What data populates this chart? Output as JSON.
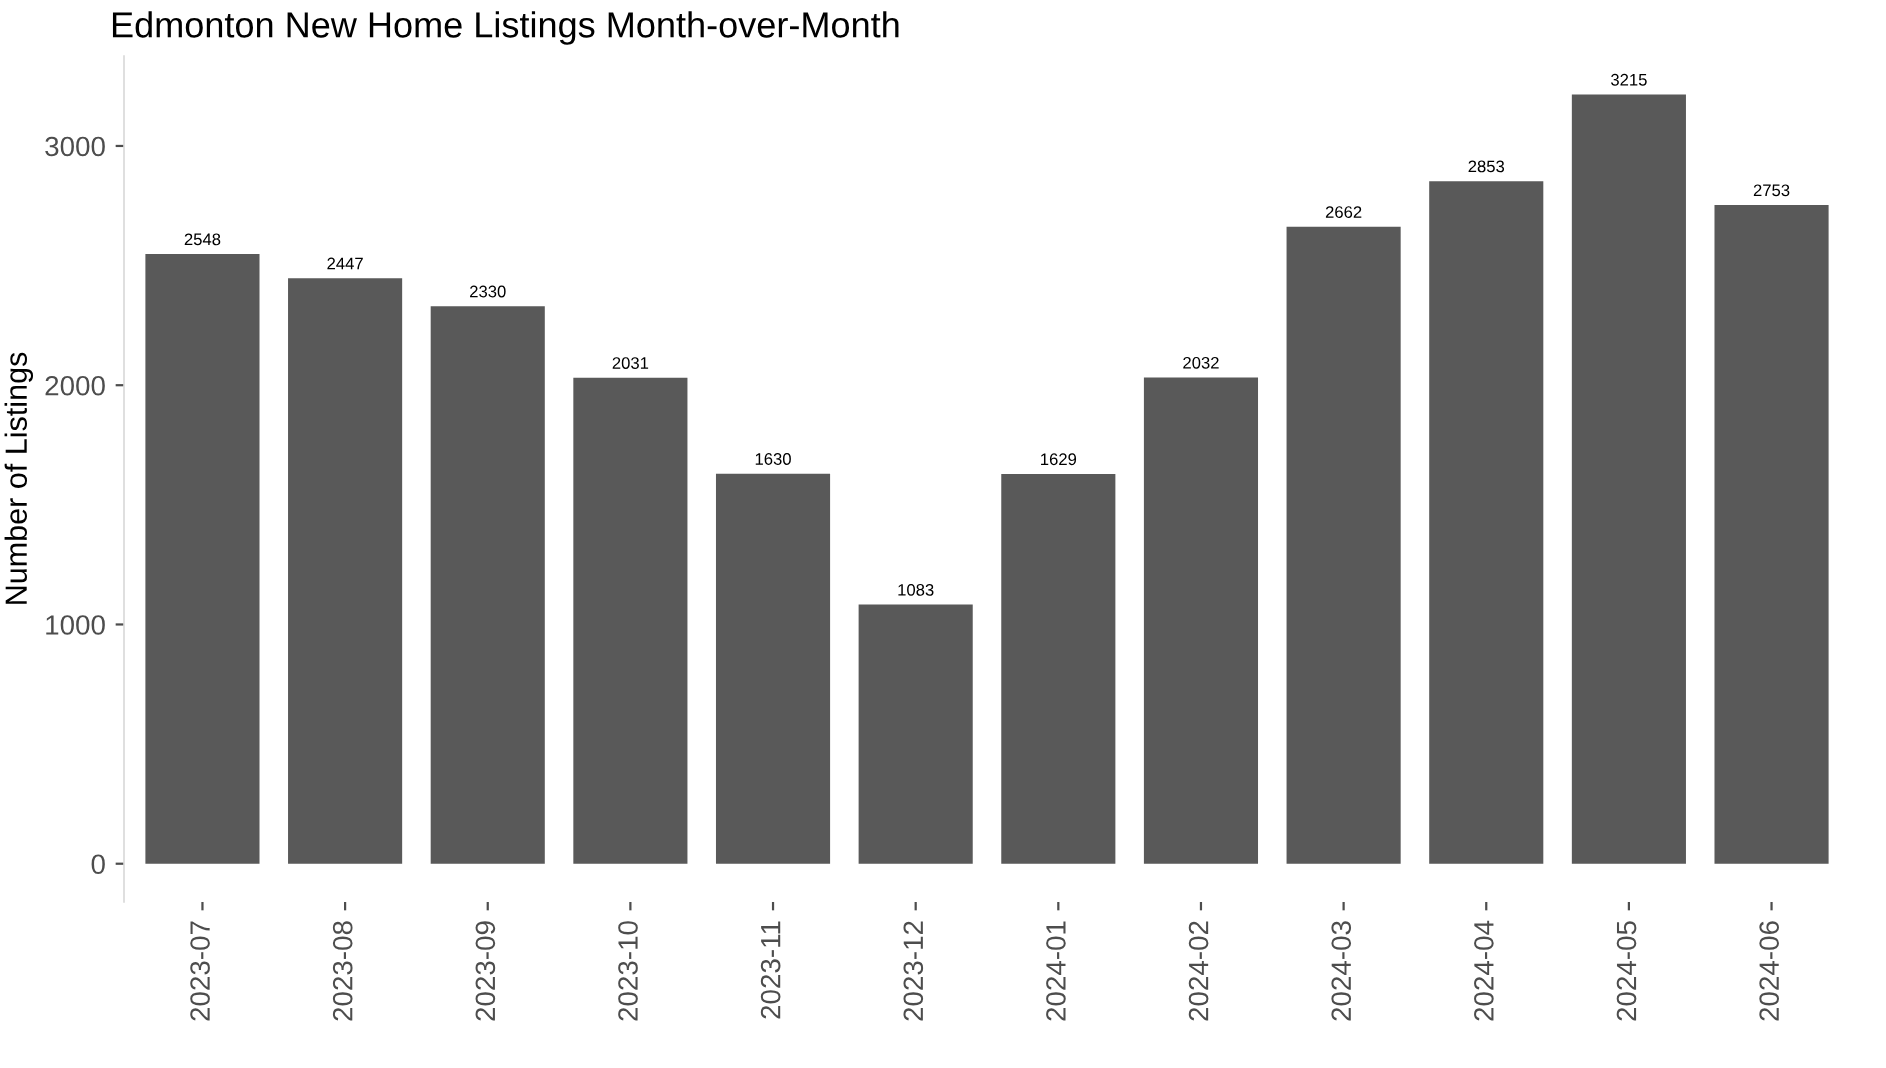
{
  "chart_data": {
    "type": "bar",
    "title": "Edmonton New Home Listings Month-over-Month",
    "ylabel": "Number of Listings",
    "categories": [
      "2023-07",
      "2023-08",
      "2023-09",
      "2023-10",
      "2023-11",
      "2023-12",
      "2024-01",
      "2024-02",
      "2024-03",
      "2024-04",
      "2024-05",
      "2024-06"
    ],
    "values": [
      2548,
      2447,
      2330,
      2031,
      1630,
      1083,
      1629,
      2032,
      2662,
      2853,
      3215,
      2753
    ],
    "color": "#595959",
    "ylim": [
      -160,
      3376
    ],
    "yticks": [
      0,
      1000,
      2000,
      3000
    ],
    "data_labels": true,
    "grid": false,
    "legend": false
  }
}
